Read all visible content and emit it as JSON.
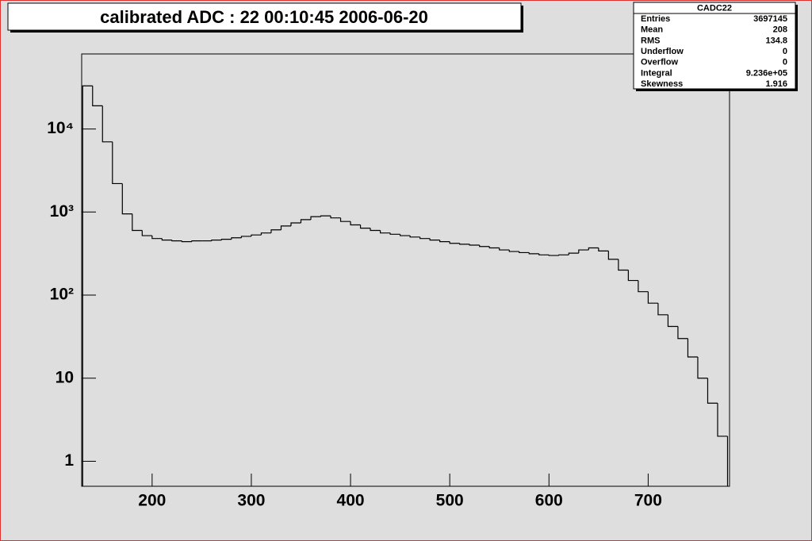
{
  "chart_data": {
    "type": "histogram",
    "title": "calibrated ADC :  22  00:10:45  2006-06-20",
    "bins": [
      130,
      140,
      150,
      160,
      170,
      180,
      190,
      200,
      210,
      220,
      230,
      240,
      250,
      260,
      270,
      280,
      290,
      300,
      310,
      320,
      330,
      340,
      350,
      360,
      370,
      380,
      390,
      400,
      410,
      420,
      430,
      440,
      450,
      460,
      470,
      480,
      490,
      500,
      510,
      520,
      530,
      540,
      550,
      560,
      570,
      580,
      590,
      600,
      610,
      620,
      630,
      640,
      650,
      660,
      670,
      680,
      690,
      700,
      710,
      720,
      730,
      740,
      750,
      760,
      770,
      780
    ],
    "values": [
      33000,
      19000,
      7000,
      2200,
      950,
      600,
      520,
      480,
      460,
      450,
      440,
      450,
      450,
      460,
      470,
      490,
      510,
      530,
      560,
      610,
      680,
      740,
      810,
      880,
      900,
      850,
      770,
      700,
      640,
      600,
      560,
      540,
      520,
      500,
      480,
      460,
      440,
      420,
      410,
      400,
      385,
      370,
      350,
      335,
      325,
      315,
      305,
      300,
      305,
      320,
      350,
      370,
      340,
      270,
      200,
      150,
      110,
      80,
      58,
      42,
      30,
      18,
      10,
      5,
      2
    ],
    "color": "#000000",
    "xlim": [
      129,
      782
    ],
    "xticks": [
      200,
      300,
      400,
      500,
      600,
      700
    ],
    "ylim": [
      0.5,
      80000
    ],
    "log_y": true,
    "yticks": [
      1,
      10,
      {
        "value": 100,
        "label": "10²"
      },
      {
        "value": 1000,
        "label": "10³"
      },
      {
        "value": 10000,
        "label": "10⁴"
      }
    ],
    "stats_box": {
      "title": "CADC22",
      "rows": [
        [
          "Entries",
          "3697145"
        ],
        [
          "Mean",
          "208"
        ],
        [
          "RMS",
          "134.8"
        ],
        [
          "Underflow",
          "0"
        ],
        [
          "Overflow",
          "0"
        ],
        [
          "Integral",
          "9.236e+05"
        ],
        [
          "Skewness",
          "1.916"
        ]
      ]
    }
  }
}
